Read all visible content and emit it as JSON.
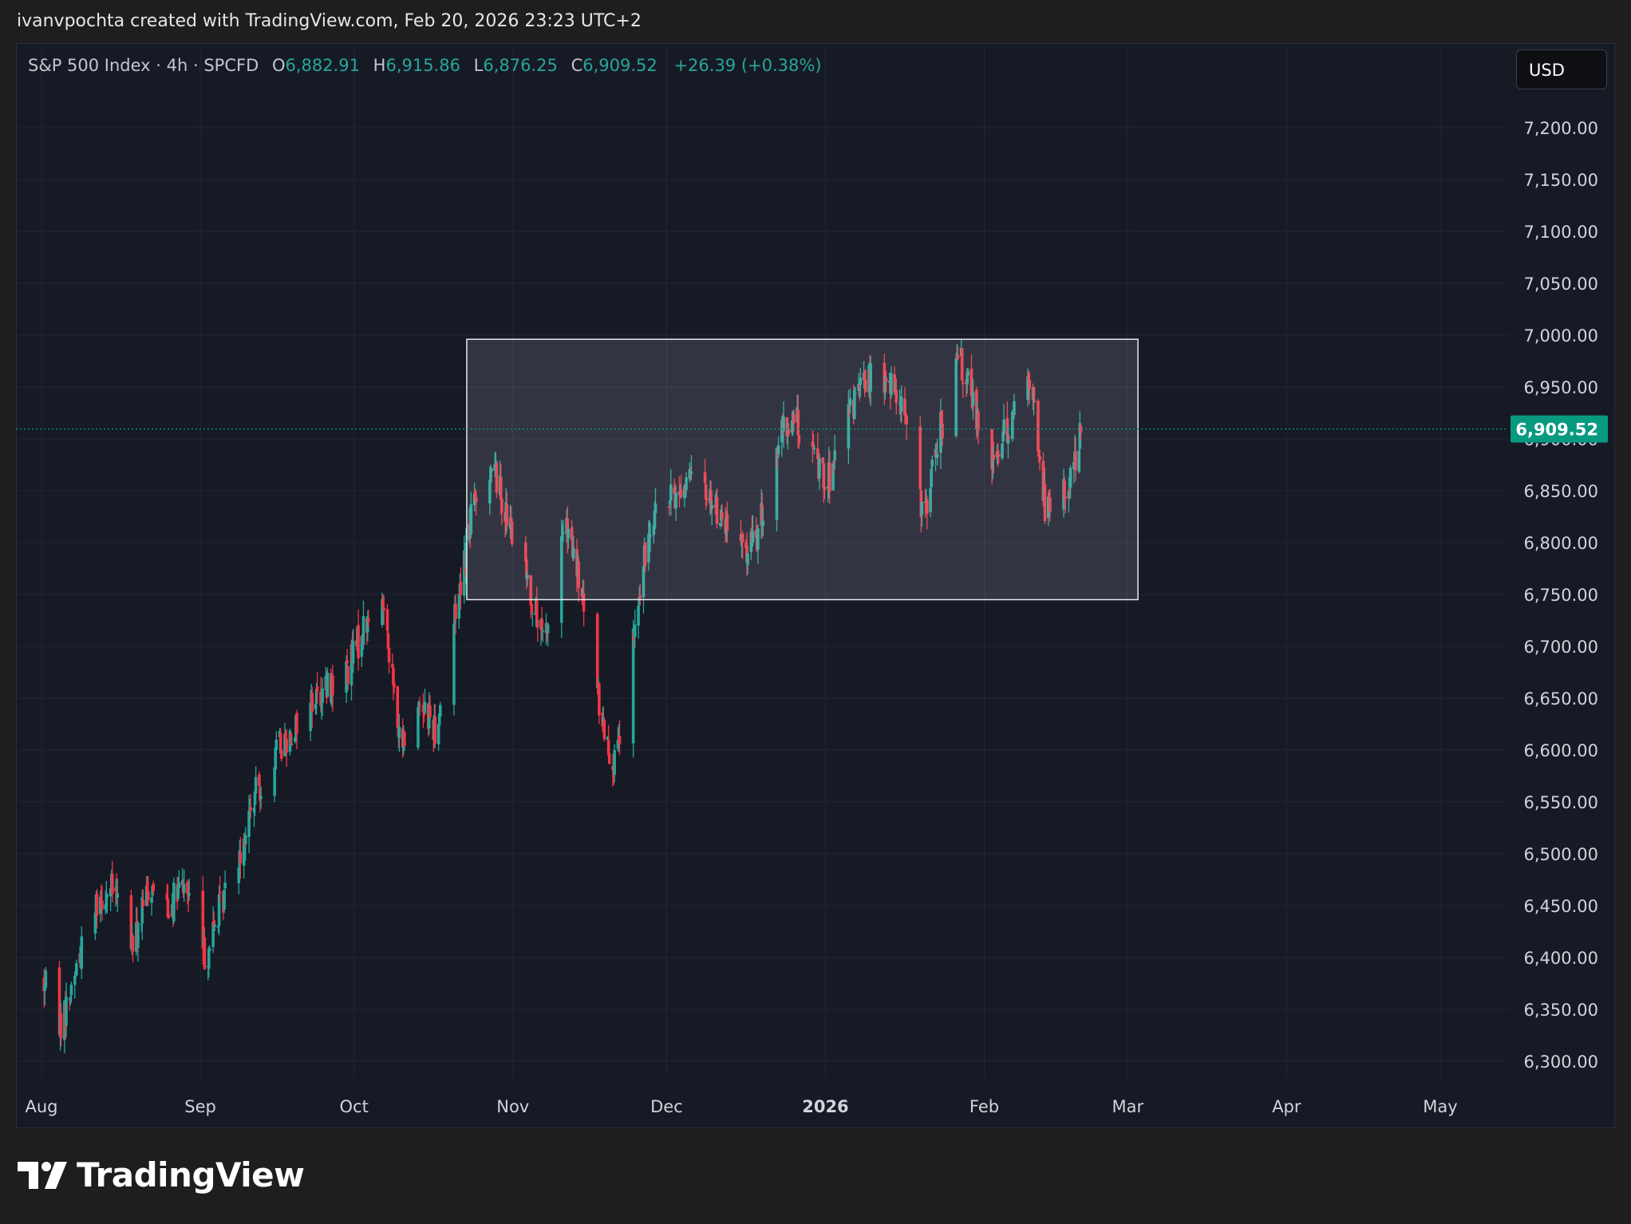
{
  "header": {
    "attribution": "ivanvpochta created with TradingView.com, Feb 20, 2026 23:23 UTC+2"
  },
  "legend": {
    "symbol": "S&P 500 Index · 4h · SPCFD",
    "open_label": "O",
    "open": "6,882.91",
    "high_label": "H",
    "high": "6,915.86",
    "low_label": "L",
    "low": "6,876.25",
    "close_label": "C",
    "close": "6,909.52",
    "change": "+26.39 (+0.38%)"
  },
  "currency": "USD",
  "brand": {
    "name": "TradingView"
  },
  "colors": {
    "up": "#26a69a",
    "down": "#f23645",
    "grid": "#232734",
    "axis_text": "#d1d4dc",
    "price_tag": "#089981"
  },
  "chart_data": {
    "type": "candlestick",
    "symbol": "S&P 500 Index",
    "interval": "4h",
    "y_ticks": [
      6300,
      6350,
      6400,
      6450,
      6500,
      6550,
      6600,
      6650,
      6700,
      6750,
      6800,
      6850,
      6900,
      6950,
      7000,
      7050,
      7100,
      7150,
      7200
    ],
    "y_tick_labels": [
      "6,300.00",
      "6,350.00",
      "6,400.00",
      "6,450.00",
      "6,500.00",
      "6,550.00",
      "6,600.00",
      "6,650.00",
      "6,700.00",
      "6,750.00",
      "6,800.00",
      "6,850.00",
      "6,900.00",
      "6,950.00",
      "7,000.00",
      "7,050.00",
      "7,100.00",
      "7,150.00",
      "7,200.00"
    ],
    "x_ticks": [
      {
        "label": "Aug",
        "date": "2025-08-01"
      },
      {
        "label": "Sep",
        "date": "2025-09-01"
      },
      {
        "label": "Oct",
        "date": "2025-10-01"
      },
      {
        "label": "Nov",
        "date": "2025-11-01"
      },
      {
        "label": "Dec",
        "date": "2025-12-01"
      },
      {
        "label": "2026",
        "date": "2026-01-01",
        "bold": true
      },
      {
        "label": "Feb",
        "date": "2026-02-01"
      },
      {
        "label": "Mar",
        "date": "2026-03-01"
      },
      {
        "label": "Apr",
        "date": "2026-04-01"
      },
      {
        "label": "May",
        "date": "2026-05-01"
      }
    ],
    "last_price": 6909.52,
    "last_price_label": "6,909.52",
    "range_box": {
      "start": "2025-10-23",
      "end": "2026-03-03",
      "top": 6996,
      "bottom": 6745
    },
    "daily_closes": [
      [
        "2025-08-01",
        6380
      ],
      [
        "2025-08-05",
        6335
      ],
      [
        "2025-08-08",
        6395
      ],
      [
        "2025-08-12",
        6460
      ],
      [
        "2025-08-15",
        6465
      ],
      [
        "2025-08-19",
        6410
      ],
      [
        "2025-08-22",
        6470
      ],
      [
        "2025-08-26",
        6450
      ],
      [
        "2025-08-29",
        6470
      ],
      [
        "2025-09-02",
        6400
      ],
      [
        "2025-09-05",
        6450
      ],
      [
        "2025-09-09",
        6510
      ],
      [
        "2025-09-12",
        6560
      ],
      [
        "2025-09-16",
        6600
      ],
      [
        "2025-09-19",
        6620
      ],
      [
        "2025-09-23",
        6650
      ],
      [
        "2025-09-26",
        6660
      ],
      [
        "2025-09-30",
        6680
      ],
      [
        "2025-10-03",
        6720
      ],
      [
        "2025-10-07",
        6740
      ],
      [
        "2025-10-10",
        6600
      ],
      [
        "2025-10-14",
        6650
      ],
      [
        "2025-10-17",
        6620
      ],
      [
        "2025-10-21",
        6740
      ],
      [
        "2025-10-24",
        6830
      ],
      [
        "2025-10-28",
        6880
      ],
      [
        "2025-10-31",
        6820
      ],
      [
        "2025-11-04",
        6760
      ],
      [
        "2025-11-07",
        6700
      ],
      [
        "2025-11-11",
        6820
      ],
      [
        "2025-11-14",
        6760
      ],
      [
        "2025-11-18",
        6640
      ],
      [
        "2025-11-21",
        6580
      ],
      [
        "2025-11-25",
        6720
      ],
      [
        "2025-11-28",
        6830
      ],
      [
        "2025-12-02",
        6840
      ],
      [
        "2025-12-05",
        6860
      ],
      [
        "2025-12-09",
        6850
      ],
      [
        "2025-12-12",
        6820
      ],
      [
        "2025-12-16",
        6790
      ],
      [
        "2025-12-19",
        6810
      ],
      [
        "2025-12-23",
        6900
      ],
      [
        "2025-12-26",
        6920
      ],
      [
        "2025-12-30",
        6880
      ],
      [
        "2026-01-02",
        6860
      ],
      [
        "2026-01-06",
        6930
      ],
      [
        "2026-01-09",
        6960
      ],
      [
        "2026-01-13",
        6950
      ],
      [
        "2026-01-16",
        6940
      ],
      [
        "2026-01-20",
        6820
      ],
      [
        "2026-01-23",
        6900
      ],
      [
        "2026-01-27",
        6980
      ],
      [
        "2026-01-30",
        6930
      ],
      [
        "2026-02-03",
        6880
      ],
      [
        "2026-02-06",
        6920
      ],
      [
        "2026-02-10",
        6960
      ],
      [
        "2026-02-13",
        6830
      ],
      [
        "2026-02-17",
        6850
      ],
      [
        "2026-02-20",
        6909.52
      ]
    ]
  }
}
